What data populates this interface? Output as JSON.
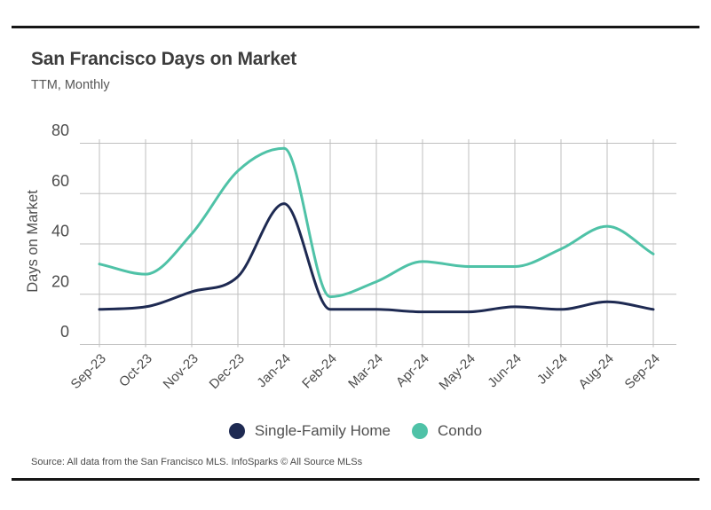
{
  "header": {
    "title": "San Francisco Days on Market",
    "subtitle": "TTM, Monthly"
  },
  "chart_data": {
    "type": "line",
    "title": "San Francisco Days on Market",
    "subtitle": "TTM, Monthly",
    "xlabel": "",
    "ylabel": "Days on Market",
    "categories": [
      "Sep-23",
      "Oct-23",
      "Nov-23",
      "Dec-23",
      "Jan-24",
      "Feb-24",
      "Mar-24",
      "Apr-24",
      "May-24",
      "Jun-24",
      "Jul-24",
      "Aug-24",
      "Sep-24"
    ],
    "series": [
      {
        "name": "Single-Family Home",
        "color": "#1e2a52",
        "values": [
          14,
          15,
          21,
          27,
          56,
          14,
          14,
          13,
          13,
          15,
          14,
          17,
          14
        ]
      },
      {
        "name": "Condo",
        "color": "#4fc2a7",
        "values": [
          32,
          28,
          44,
          69,
          78,
          19,
          25,
          33,
          31,
          31,
          38,
          47,
          36
        ]
      }
    ],
    "ylim": [
      0,
      80
    ],
    "yticks": [
      0,
      20,
      40,
      60,
      80
    ],
    "grid": true,
    "legend_position": "bottom"
  },
  "footer": {
    "source": "Source:  All data from the San Francisco MLS. InfoSparks © All Source MLSs"
  },
  "colors": {
    "rule": "#161616",
    "gridline": "#bfbfbf",
    "tick_text": "#4d4d4d",
    "axis_label_text": "#4d4d4d",
    "title_text": "#3c3c3c",
    "subtitle_text": "#565656",
    "legend_text": "#4f4f4f",
    "source_text": "#4a4a4a",
    "background": "#ffffff"
  }
}
